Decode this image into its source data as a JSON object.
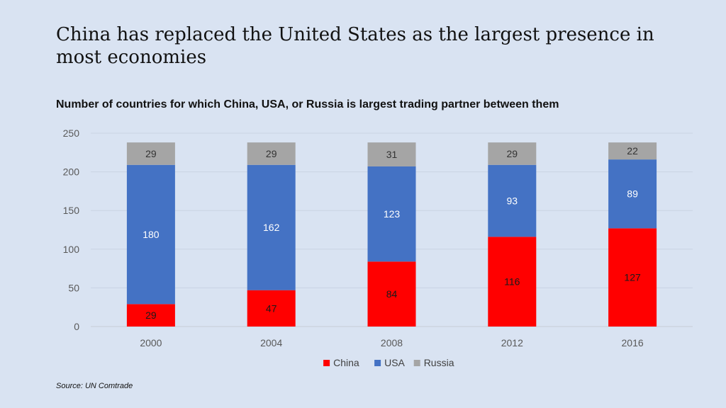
{
  "title": "China has replaced the United States as the largest presence in most economies",
  "source": "Source: UN Comtrade",
  "chart_data": {
    "type": "bar",
    "stacked": true,
    "title": "Number of countries for which China, USA, or Russia is largest trading partner between them",
    "xlabel": "",
    "ylabel": "",
    "categories": [
      "2000",
      "2004",
      "2008",
      "2012",
      "2016"
    ],
    "series": [
      {
        "name": "China",
        "color": "#ff0000",
        "label_color": "#1a1a1a",
        "values": [
          29,
          47,
          84,
          116,
          127
        ]
      },
      {
        "name": "USA",
        "color": "#4472c4",
        "label_color": "#ffffff",
        "values": [
          180,
          162,
          123,
          93,
          89
        ]
      },
      {
        "name": "Russia",
        "color": "#a5a5a5",
        "label_color": "#333333",
        "values": [
          29,
          29,
          31,
          29,
          22
        ]
      }
    ],
    "ylim": [
      0,
      250
    ],
    "yticks": [
      0,
      50,
      100,
      150,
      200,
      250
    ],
    "grid": true,
    "legend_position": "bottom"
  }
}
